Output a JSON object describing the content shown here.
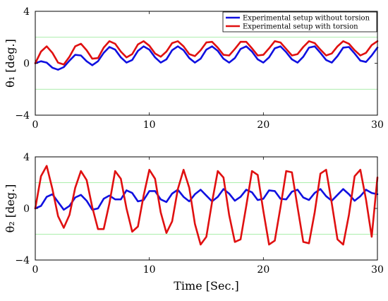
{
  "chart_data": [
    {
      "type": "line",
      "ylabel": "θ₁ [deg.]",
      "xlabel": "",
      "xlim": [
        0,
        30
      ],
      "ylim": [
        -4,
        4
      ],
      "xticks": [
        0,
        10,
        20,
        30
      ],
      "yticks": [
        -4,
        0,
        4
      ],
      "xtick_labels": [
        "0",
        "10",
        "20",
        "30"
      ],
      "ytick_labels": [
        "−4",
        "0",
        "4"
      ],
      "reference_lines": [
        2,
        -2
      ],
      "legend": {
        "placement": "top-right",
        "entries": [
          "Experimental setup without torsion",
          "Experimental setup with torsion"
        ]
      },
      "series": [
        {
          "name": "Experimental setup without torsion",
          "color": "#1010e0",
          "x": [
            0,
            0.5,
            1,
            1.5,
            2,
            2.5,
            3,
            3.5,
            4,
            4.5,
            5,
            5.5,
            6,
            6.5,
            7,
            7.5,
            8,
            8.5,
            9,
            9.5,
            10,
            10.5,
            11,
            11.5,
            12,
            12.5,
            13,
            13.5,
            14,
            14.5,
            15,
            15.5,
            16,
            16.5,
            17,
            17.5,
            18,
            18.5,
            19,
            19.5,
            20,
            20.5,
            21,
            21.5,
            22,
            22.5,
            23,
            23.5,
            24,
            24.5,
            25,
            25.5,
            26,
            26.5,
            27,
            27.5,
            28,
            28.5,
            29,
            29.5,
            30
          ],
          "y": [
            0,
            0.15,
            0.05,
            -0.35,
            -0.5,
            -0.3,
            0.2,
            0.65,
            0.6,
            0.15,
            -0.15,
            0.15,
            0.8,
            1.25,
            1.05,
            0.45,
            0.05,
            0.25,
            0.95,
            1.3,
            1.05,
            0.45,
            0.05,
            0.3,
            1.0,
            1.3,
            1.0,
            0.4,
            0.05,
            0.35,
            1.05,
            1.3,
            0.95,
            0.35,
            0.05,
            0.4,
            1.1,
            1.3,
            0.9,
            0.3,
            0.05,
            0.45,
            1.15,
            1.3,
            0.85,
            0.3,
            0.05,
            0.5,
            1.2,
            1.3,
            0.8,
            0.25,
            0.05,
            0.55,
            1.2,
            1.25,
            0.75,
            0.2,
            0.1,
            0.6,
            1.2
          ]
        },
        {
          "name": "Experimental setup with torsion",
          "color": "#e01010",
          "x": [
            0,
            0.5,
            1,
            1.5,
            2,
            2.5,
            3,
            3.5,
            4,
            4.5,
            5,
            5.5,
            6,
            6.5,
            7,
            7.5,
            8,
            8.5,
            9,
            9.5,
            10,
            10.5,
            11,
            11.5,
            12,
            12.5,
            13,
            13.5,
            14,
            14.5,
            15,
            15.5,
            16,
            16.5,
            17,
            17.5,
            18,
            18.5,
            19,
            19.5,
            20,
            20.5,
            21,
            21.5,
            22,
            22.5,
            23,
            23.5,
            24,
            24.5,
            25,
            25.5,
            26,
            26.5,
            27,
            27.5,
            28,
            28.5,
            29,
            29.5,
            30
          ],
          "y": [
            0,
            0.9,
            1.3,
            0.8,
            0.05,
            -0.1,
            0.5,
            1.3,
            1.5,
            1.0,
            0.35,
            0.4,
            1.2,
            1.7,
            1.5,
            0.9,
            0.45,
            0.7,
            1.45,
            1.7,
            1.35,
            0.75,
            0.5,
            0.9,
            1.55,
            1.7,
            1.3,
            0.7,
            0.55,
            1.0,
            1.6,
            1.65,
            1.2,
            0.65,
            0.6,
            1.1,
            1.65,
            1.65,
            1.15,
            0.6,
            0.65,
            1.15,
            1.7,
            1.6,
            1.1,
            0.6,
            0.7,
            1.25,
            1.7,
            1.55,
            1.05,
            0.6,
            0.75,
            1.3,
            1.7,
            1.5,
            1.0,
            0.6,
            0.8,
            1.4,
            1.7
          ]
        }
      ]
    },
    {
      "type": "line",
      "ylabel": "θ₂ [deg.]",
      "xlabel": "Time [Sec.]",
      "xlim": [
        0,
        30
      ],
      "ylim": [
        -4,
        4
      ],
      "xticks": [
        0,
        10,
        20,
        30
      ],
      "yticks": [
        -4,
        0,
        4
      ],
      "xtick_labels": [
        "0",
        "10",
        "20",
        "30"
      ],
      "ytick_labels": [
        "−4",
        "0",
        "4"
      ],
      "reference_lines": [
        2,
        -2
      ],
      "series": [
        {
          "name": "Experimental setup without torsion",
          "color": "#1010e0",
          "x": [
            0,
            0.5,
            1,
            1.5,
            2,
            2.5,
            3,
            3.5,
            4,
            4.5,
            5,
            5.5,
            6,
            6.5,
            7,
            7.5,
            8,
            8.5,
            9,
            9.5,
            10,
            10.5,
            11,
            11.5,
            12,
            12.5,
            13,
            13.5,
            14,
            14.5,
            15,
            15.5,
            16,
            16.5,
            17,
            17.5,
            18,
            18.5,
            19,
            19.5,
            20,
            20.5,
            21,
            21.5,
            22,
            22.5,
            23,
            23.5,
            24,
            24.5,
            25,
            25.5,
            26,
            26.5,
            27,
            27.5,
            28,
            28.5,
            29,
            29.5,
            30
          ],
          "y": [
            0,
            0.2,
            0.9,
            1.1,
            0.5,
            -0.1,
            0.2,
            0.85,
            1.05,
            0.6,
            -0.1,
            0.0,
            0.75,
            1.0,
            0.7,
            0.7,
            1.4,
            1.2,
            0.55,
            0.65,
            1.35,
            1.35,
            0.7,
            0.5,
            1.15,
            1.45,
            0.9,
            0.55,
            1.1,
            1.45,
            1.0,
            0.55,
            0.9,
            1.5,
            1.15,
            0.6,
            0.9,
            1.45,
            1.25,
            0.65,
            0.75,
            1.4,
            1.35,
            0.75,
            0.7,
            1.3,
            1.45,
            0.85,
            0.65,
            1.2,
            1.5,
            0.95,
            0.6,
            1.05,
            1.5,
            1.1,
            0.6,
            0.95,
            1.45,
            1.2,
            1.1
          ]
        },
        {
          "name": "Experimental setup with torsion",
          "color": "#e01010",
          "x": [
            0,
            0.5,
            1,
            1.5,
            2,
            2.5,
            3,
            3.5,
            4,
            4.5,
            5,
            5.5,
            6,
            6.5,
            7,
            7.5,
            8,
            8.5,
            9,
            9.5,
            10,
            10.5,
            11,
            11.5,
            12,
            12.5,
            13,
            13.5,
            14,
            14.5,
            15,
            15.5,
            16,
            16.5,
            17,
            17.5,
            18,
            18.5,
            19,
            19.5,
            20,
            20.5,
            21,
            21.5,
            22,
            22.5,
            23,
            23.5,
            24,
            24.5,
            25,
            25.5,
            26,
            26.5,
            27,
            27.5,
            28,
            28.5,
            29,
            29.5,
            30
          ],
          "y": [
            0,
            2.5,
            3.3,
            1.5,
            -0.6,
            -1.5,
            -0.5,
            1.6,
            2.9,
            2.2,
            0.1,
            -1.6,
            -1.6,
            0.4,
            2.9,
            2.3,
            0.0,
            -1.8,
            -1.4,
            1.0,
            3.0,
            2.3,
            -0.3,
            -1.9,
            -1.0,
            1.5,
            3.0,
            1.6,
            -1.2,
            -2.8,
            -2.2,
            0.5,
            2.9,
            2.4,
            -0.5,
            -2.6,
            -2.4,
            0.2,
            2.9,
            2.6,
            -0.2,
            -2.8,
            -2.5,
            0.1,
            2.9,
            2.8,
            0.1,
            -2.6,
            -2.7,
            -0.3,
            2.7,
            3.0,
            0.4,
            -2.4,
            -2.8,
            -0.5,
            2.5,
            3.0,
            0.7,
            -2.2,
            2.4
          ]
        }
      ]
    }
  ]
}
